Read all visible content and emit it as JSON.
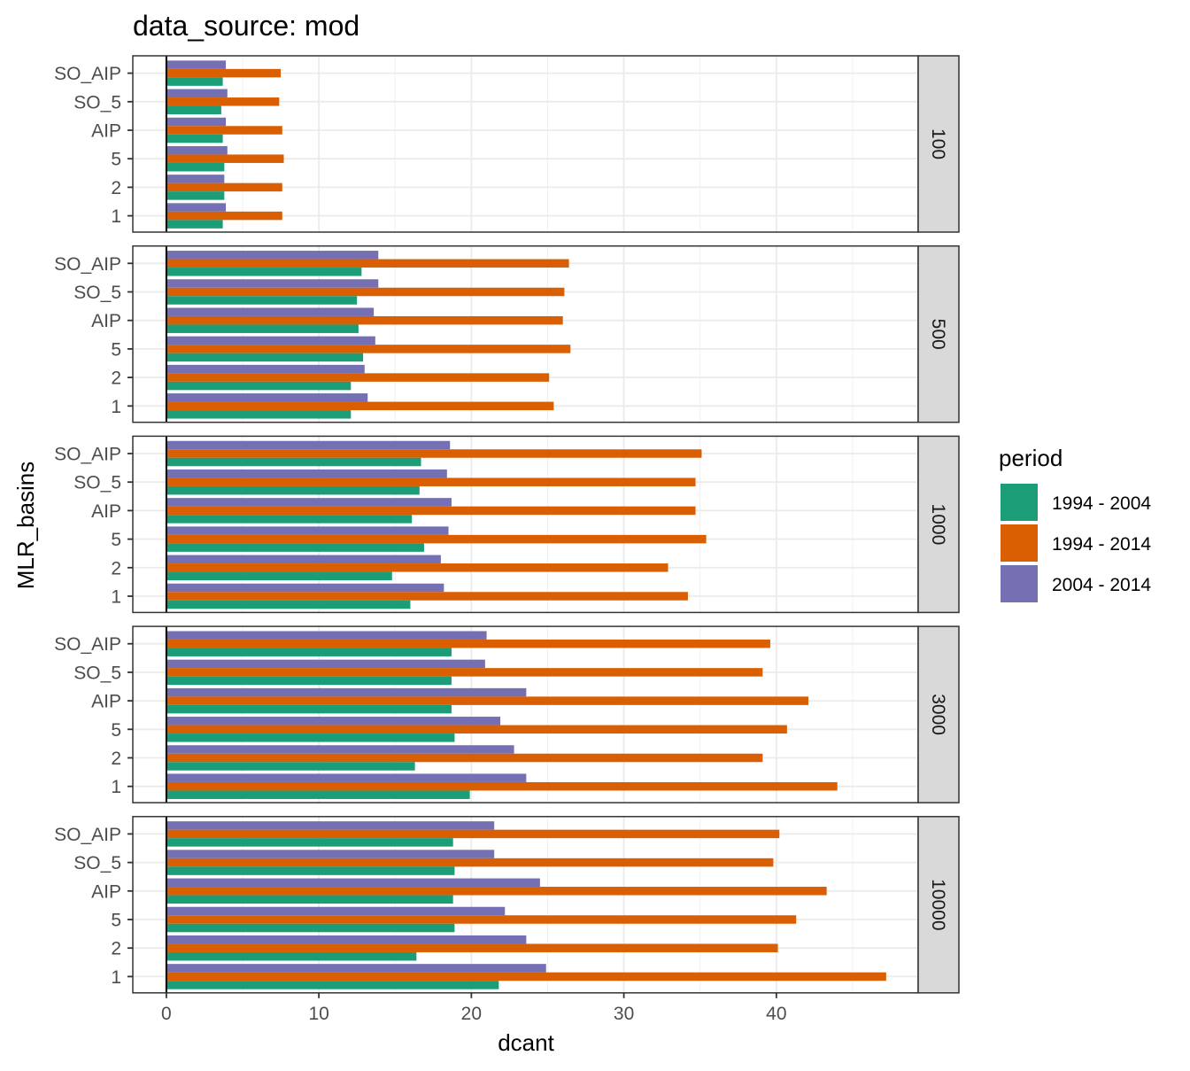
{
  "chart_data": {
    "type": "bar",
    "orientation": "horizontal",
    "title": "data_source: mod",
    "xlabel": "dcant",
    "ylabel": "MLR_basins",
    "xlim": [
      -2.2,
      49.3
    ],
    "xticks": [
      0,
      10,
      20,
      30,
      40
    ],
    "grid": true,
    "facet_by": "depth",
    "categories": [
      "SO_AIP",
      "SO_5",
      "AIP",
      "5",
      "2",
      "1"
    ],
    "legend": {
      "title": "period",
      "position": "right",
      "entries": [
        "1994 - 2004",
        "1994 - 2014",
        "2004 - 2014"
      ]
    },
    "colors": {
      "1994 - 2004": "#1b9e77",
      "1994 - 2014": "#d95f02",
      "2004 - 2014": "#7570b3"
    },
    "panels": [
      {
        "strip": "100",
        "series": [
          {
            "name": "1994 - 2004",
            "values": [
              3.7,
              3.6,
              3.7,
              3.8,
              3.8,
              3.7
            ]
          },
          {
            "name": "1994 - 2014",
            "values": [
              7.5,
              7.4,
              7.6,
              7.7,
              7.6,
              7.6
            ]
          },
          {
            "name": "2004 - 2014",
            "values": [
              3.9,
              4.0,
              3.9,
              4.0,
              3.8,
              3.9
            ]
          }
        ]
      },
      {
        "strip": "500",
        "series": [
          {
            "name": "1994 - 2004",
            "values": [
              12.8,
              12.5,
              12.6,
              12.9,
              12.1,
              12.1
            ]
          },
          {
            "name": "1994 - 2014",
            "values": [
              26.4,
              26.1,
              26.0,
              26.5,
              25.1,
              25.4
            ]
          },
          {
            "name": "2004 - 2014",
            "values": [
              13.9,
              13.9,
              13.6,
              13.7,
              13.0,
              13.2
            ]
          }
        ]
      },
      {
        "strip": "1000",
        "series": [
          {
            "name": "1994 - 2004",
            "values": [
              16.7,
              16.6,
              16.1,
              16.9,
              14.8,
              16.0
            ]
          },
          {
            "name": "1994 - 2014",
            "values": [
              35.1,
              34.7,
              34.7,
              35.4,
              32.9,
              34.2
            ]
          },
          {
            "name": "2004 - 2014",
            "values": [
              18.6,
              18.4,
              18.7,
              18.5,
              18.0,
              18.2
            ]
          }
        ]
      },
      {
        "strip": "3000",
        "series": [
          {
            "name": "1994 - 2004",
            "values": [
              18.7,
              18.7,
              18.7,
              18.9,
              16.3,
              19.9
            ]
          },
          {
            "name": "1994 - 2014",
            "values": [
              39.6,
              39.1,
              42.1,
              40.7,
              39.1,
              44.0
            ]
          },
          {
            "name": "2004 - 2014",
            "values": [
              21.0,
              20.9,
              23.6,
              21.9,
              22.8,
              23.6
            ]
          }
        ]
      },
      {
        "strip": "10000",
        "series": [
          {
            "name": "1994 - 2004",
            "values": [
              18.8,
              18.9,
              18.8,
              18.9,
              16.4,
              21.8
            ]
          },
          {
            "name": "1994 - 2014",
            "values": [
              40.2,
              39.8,
              43.3,
              41.3,
              40.1,
              47.2
            ]
          },
          {
            "name": "2004 - 2014",
            "values": [
              21.5,
              21.5,
              24.5,
              22.2,
              23.6,
              24.9
            ]
          }
        ]
      }
    ]
  }
}
